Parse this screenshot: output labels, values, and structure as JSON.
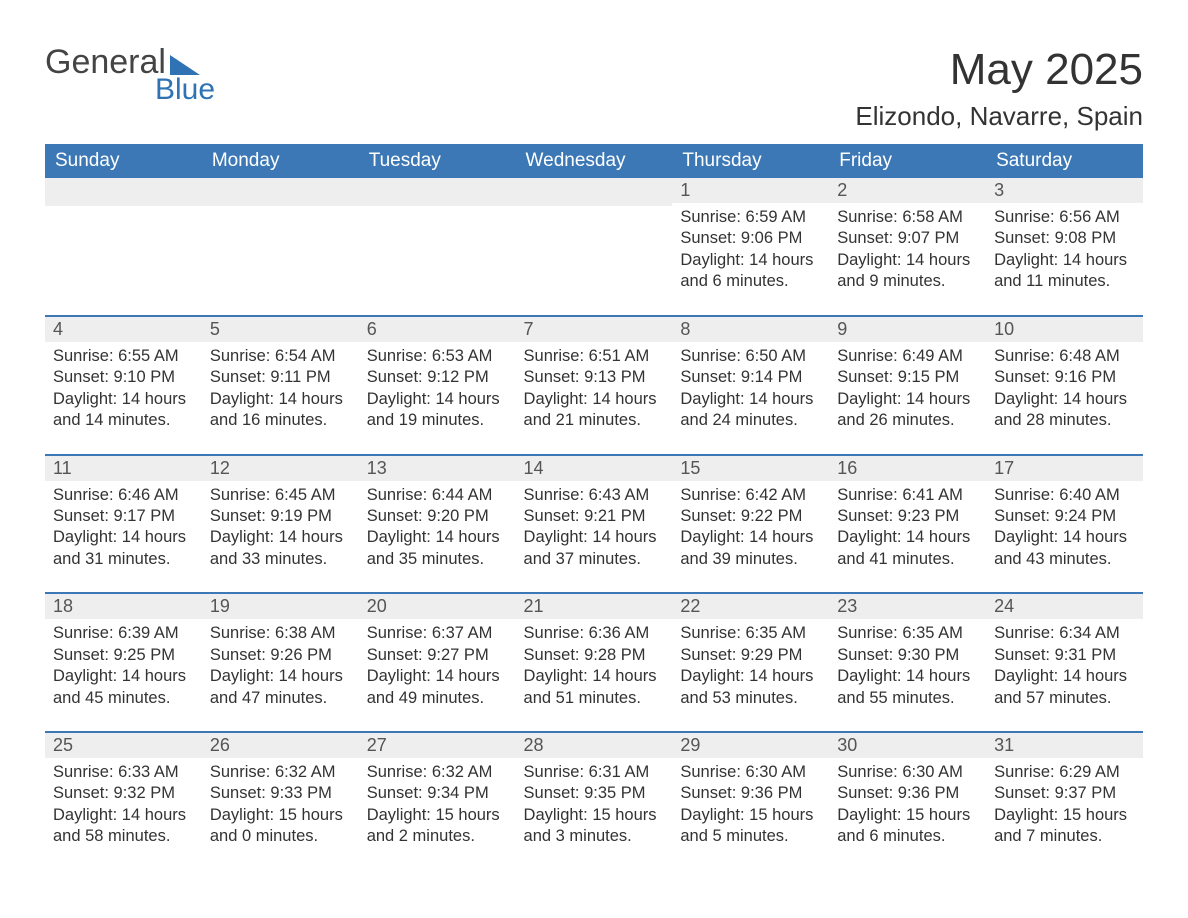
{
  "logo": {
    "top": "General",
    "sub": "Blue"
  },
  "title": "May 2025",
  "location": "Elizondo, Navarre, Spain",
  "colors": {
    "header_bg": "#3d78b6",
    "header_text": "#ffffff",
    "daynum_bg": "#eeeeee",
    "accent": "#2f73b5",
    "text": "#333333"
  },
  "weekdays": [
    "Sunday",
    "Monday",
    "Tuesday",
    "Wednesday",
    "Thursday",
    "Friday",
    "Saturday"
  ],
  "weeks": [
    [
      null,
      null,
      null,
      null,
      {
        "n": "1",
        "sunrise": "6:59 AM",
        "sunset": "9:06 PM",
        "daylight": "14 hours and 6 minutes."
      },
      {
        "n": "2",
        "sunrise": "6:58 AM",
        "sunset": "9:07 PM",
        "daylight": "14 hours and 9 minutes."
      },
      {
        "n": "3",
        "sunrise": "6:56 AM",
        "sunset": "9:08 PM",
        "daylight": "14 hours and 11 minutes."
      }
    ],
    [
      {
        "n": "4",
        "sunrise": "6:55 AM",
        "sunset": "9:10 PM",
        "daylight": "14 hours and 14 minutes."
      },
      {
        "n": "5",
        "sunrise": "6:54 AM",
        "sunset": "9:11 PM",
        "daylight": "14 hours and 16 minutes."
      },
      {
        "n": "6",
        "sunrise": "6:53 AM",
        "sunset": "9:12 PM",
        "daylight": "14 hours and 19 minutes."
      },
      {
        "n": "7",
        "sunrise": "6:51 AM",
        "sunset": "9:13 PM",
        "daylight": "14 hours and 21 minutes."
      },
      {
        "n": "8",
        "sunrise": "6:50 AM",
        "sunset": "9:14 PM",
        "daylight": "14 hours and 24 minutes."
      },
      {
        "n": "9",
        "sunrise": "6:49 AM",
        "sunset": "9:15 PM",
        "daylight": "14 hours and 26 minutes."
      },
      {
        "n": "10",
        "sunrise": "6:48 AM",
        "sunset": "9:16 PM",
        "daylight": "14 hours and 28 minutes."
      }
    ],
    [
      {
        "n": "11",
        "sunrise": "6:46 AM",
        "sunset": "9:17 PM",
        "daylight": "14 hours and 31 minutes."
      },
      {
        "n": "12",
        "sunrise": "6:45 AM",
        "sunset": "9:19 PM",
        "daylight": "14 hours and 33 minutes."
      },
      {
        "n": "13",
        "sunrise": "6:44 AM",
        "sunset": "9:20 PM",
        "daylight": "14 hours and 35 minutes."
      },
      {
        "n": "14",
        "sunrise": "6:43 AM",
        "sunset": "9:21 PM",
        "daylight": "14 hours and 37 minutes."
      },
      {
        "n": "15",
        "sunrise": "6:42 AM",
        "sunset": "9:22 PM",
        "daylight": "14 hours and 39 minutes."
      },
      {
        "n": "16",
        "sunrise": "6:41 AM",
        "sunset": "9:23 PM",
        "daylight": "14 hours and 41 minutes."
      },
      {
        "n": "17",
        "sunrise": "6:40 AM",
        "sunset": "9:24 PM",
        "daylight": "14 hours and 43 minutes."
      }
    ],
    [
      {
        "n": "18",
        "sunrise": "6:39 AM",
        "sunset": "9:25 PM",
        "daylight": "14 hours and 45 minutes."
      },
      {
        "n": "19",
        "sunrise": "6:38 AM",
        "sunset": "9:26 PM",
        "daylight": "14 hours and 47 minutes."
      },
      {
        "n": "20",
        "sunrise": "6:37 AM",
        "sunset": "9:27 PM",
        "daylight": "14 hours and 49 minutes."
      },
      {
        "n": "21",
        "sunrise": "6:36 AM",
        "sunset": "9:28 PM",
        "daylight": "14 hours and 51 minutes."
      },
      {
        "n": "22",
        "sunrise": "6:35 AM",
        "sunset": "9:29 PM",
        "daylight": "14 hours and 53 minutes."
      },
      {
        "n": "23",
        "sunrise": "6:35 AM",
        "sunset": "9:30 PM",
        "daylight": "14 hours and 55 minutes."
      },
      {
        "n": "24",
        "sunrise": "6:34 AM",
        "sunset": "9:31 PM",
        "daylight": "14 hours and 57 minutes."
      }
    ],
    [
      {
        "n": "25",
        "sunrise": "6:33 AM",
        "sunset": "9:32 PM",
        "daylight": "14 hours and 58 minutes."
      },
      {
        "n": "26",
        "sunrise": "6:32 AM",
        "sunset": "9:33 PM",
        "daylight": "15 hours and 0 minutes."
      },
      {
        "n": "27",
        "sunrise": "6:32 AM",
        "sunset": "9:34 PM",
        "daylight": "15 hours and 2 minutes."
      },
      {
        "n": "28",
        "sunrise": "6:31 AM",
        "sunset": "9:35 PM",
        "daylight": "15 hours and 3 minutes."
      },
      {
        "n": "29",
        "sunrise": "6:30 AM",
        "sunset": "9:36 PM",
        "daylight": "15 hours and 5 minutes."
      },
      {
        "n": "30",
        "sunrise": "6:30 AM",
        "sunset": "9:36 PM",
        "daylight": "15 hours and 6 minutes."
      },
      {
        "n": "31",
        "sunrise": "6:29 AM",
        "sunset": "9:37 PM",
        "daylight": "15 hours and 7 minutes."
      }
    ]
  ],
  "labels": {
    "sunrise": "Sunrise: ",
    "sunset": "Sunset: ",
    "daylight": "Daylight: "
  }
}
